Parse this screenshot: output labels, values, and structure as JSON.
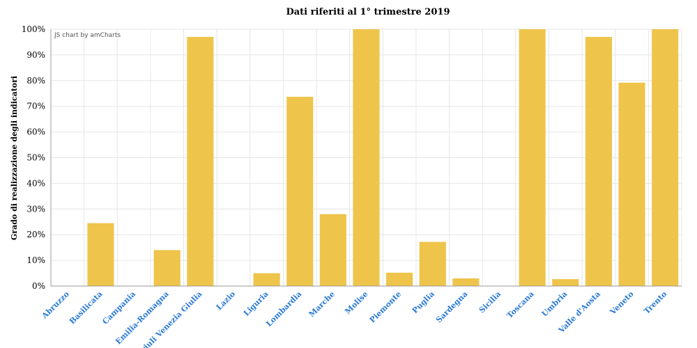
{
  "chart_data": {
    "type": "bar",
    "title": "Dati riferiti al 1° trimestre 2019",
    "ylabel": "Grado di realizzazione degli indicatori",
    "xlabel": "",
    "credit": "JS chart by amCharts",
    "ylim": [
      0,
      100
    ],
    "y_ticks": [
      "0%",
      "10%",
      "20%",
      "30%",
      "40%",
      "50%",
      "60%",
      "70%",
      "80%",
      "90%",
      "100%"
    ],
    "grid": true,
    "bar_color": "#eec44a",
    "label_color": "#2a7ad5",
    "categories": [
      "Abruzzo",
      "Basilicata",
      "Campania",
      "Emilia-Romagna",
      "Friuli Venezia Giulia",
      "Lazio",
      "Liguria",
      "Lombardia",
      "Marche",
      "Molise",
      "Piemonte",
      "Puglia",
      "Sardegna",
      "Sicilia",
      "Toscana",
      "Umbria",
      "Valle d'Aosta",
      "Veneto",
      "Trento"
    ],
    "values": [
      0,
      24.5,
      0,
      14,
      97,
      0,
      5,
      73.7,
      28,
      100,
      5.2,
      17.2,
      3,
      0,
      100,
      2.7,
      97,
      79.2,
      100
    ]
  }
}
